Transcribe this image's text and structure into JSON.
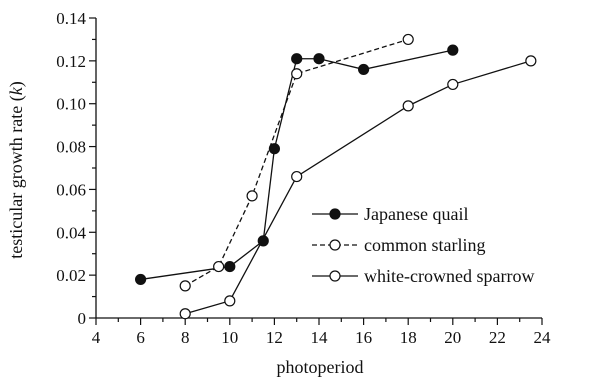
{
  "chart_data": {
    "type": "line",
    "xlabel": "photoperiod",
    "ylabel": "testicular growth rate (k)",
    "xlim": [
      4,
      24
    ],
    "ylim": [
      0,
      0.14
    ],
    "x_ticks": [
      "4",
      "6",
      "8",
      "10",
      "12",
      "14",
      "16",
      "18",
      "20",
      "22",
      "24"
    ],
    "y_ticks": [
      "0",
      "0.02",
      "0.04",
      "0.06",
      "0.08",
      "0.10",
      "0.12",
      "0.14"
    ],
    "grid": false,
    "legend_position": "right-center",
    "series": [
      {
        "name": "Japanese quail",
        "line_style": "solid",
        "marker": "filled-circle",
        "x": [
          6,
          10,
          11.5,
          12,
          13,
          14,
          16,
          20
        ],
        "y": [
          0.018,
          0.024,
          0.036,
          0.079,
          0.121,
          0.121,
          0.116,
          0.125
        ]
      },
      {
        "name": "common starling",
        "line_style": "dashed",
        "marker": "open-circle",
        "x": [
          8,
          9.5,
          11,
          13,
          18
        ],
        "y": [
          0.015,
          0.024,
          0.057,
          0.114,
          0.13
        ]
      },
      {
        "name": "white-crowned sparrow",
        "line_style": "solid",
        "marker": "open-circle",
        "x": [
          8,
          10,
          13,
          18,
          20,
          23.5
        ],
        "y": [
          0.002,
          0.008,
          0.066,
          0.099,
          0.109,
          0.12
        ]
      }
    ]
  }
}
